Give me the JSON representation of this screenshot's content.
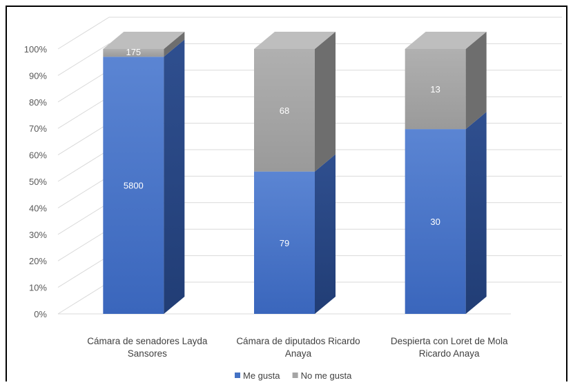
{
  "chart_data": {
    "type": "bar",
    "stacked": "percent",
    "three_d": true,
    "categories": [
      "Cámara de senadores Layda Sansores",
      "Cámara de diputados Ricardo Anaya",
      "Despierta con Loret de Mola Ricardo Anaya"
    ],
    "category_lines": [
      [
        "Cámara de senadores Layda",
        "Sansores"
      ],
      [
        "Cámara de diputados Ricardo",
        "Anaya"
      ],
      [
        "Despierta con Loret de Mola",
        "Ricardo Anaya"
      ]
    ],
    "series": [
      {
        "name": "Me gusta",
        "values": [
          5800,
          79,
          30
        ],
        "color": "#4472C4"
      },
      {
        "name": "No me gusta",
        "values": [
          175,
          68,
          13
        ],
        "color": "#A5A5A5"
      }
    ],
    "y_ticks": [
      "0%",
      "10%",
      "20%",
      "30%",
      "40%",
      "50%",
      "60%",
      "70%",
      "80%",
      "90%",
      "100%"
    ],
    "ylim": [
      0,
      100
    ],
    "grid": true,
    "legend_position": "bottom"
  }
}
